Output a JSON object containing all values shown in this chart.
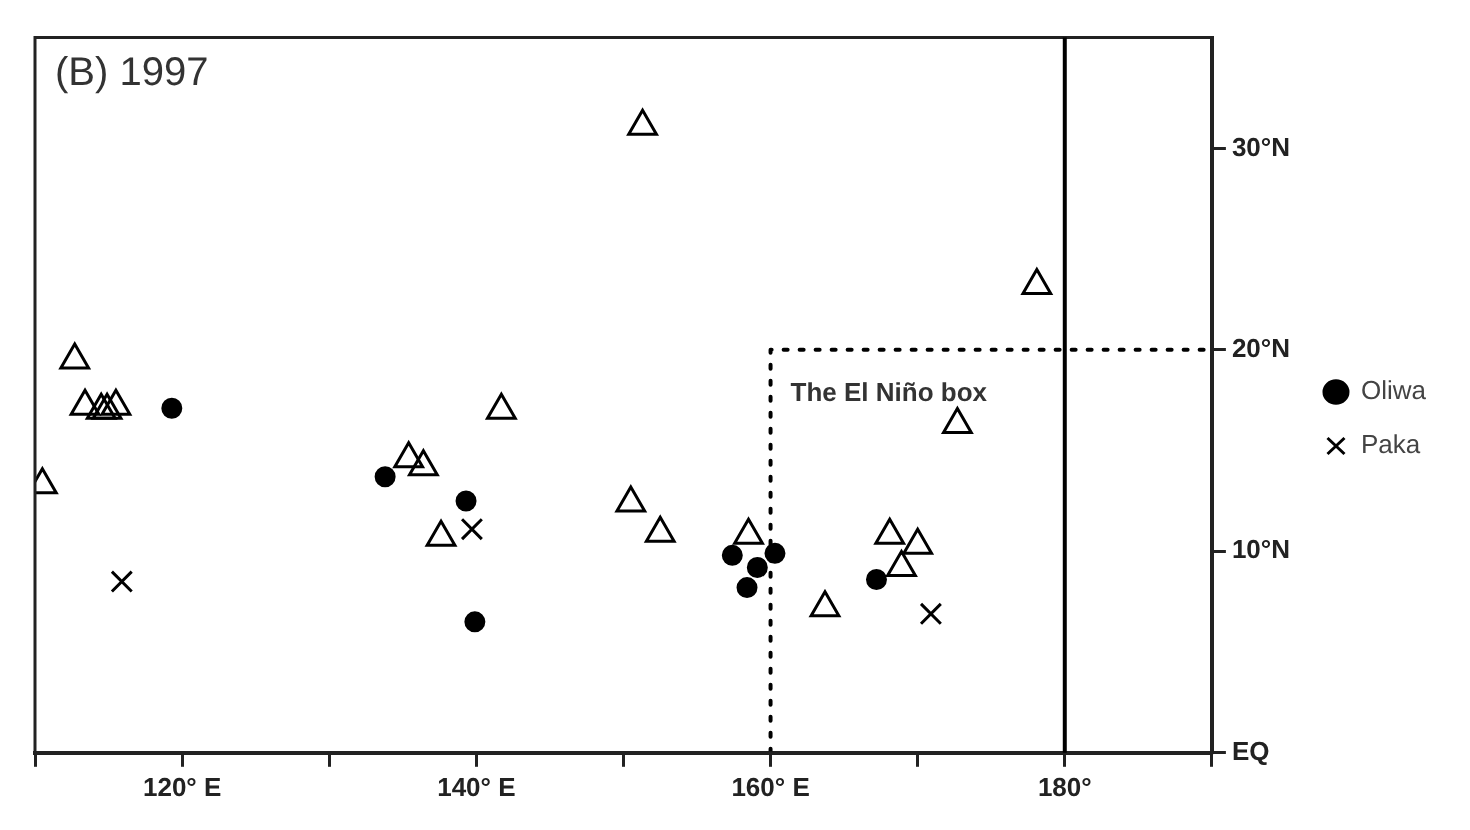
{
  "chart_data": {
    "type": "scatter",
    "title": "(B) 1997",
    "xlim": [
      110,
      190
    ],
    "ylim": [
      0,
      35.5
    ],
    "xticks": [
      {
        "value": 110,
        "label": null
      },
      {
        "value": 120,
        "label": "120° E"
      },
      {
        "value": 130,
        "label": null
      },
      {
        "value": 140,
        "label": "140° E"
      },
      {
        "value": 150,
        "label": null
      },
      {
        "value": 160,
        "label": "160° E"
      },
      {
        "value": 170,
        "label": null
      },
      {
        "value": 180,
        "label": "180°"
      },
      {
        "value": 190,
        "label": null
      }
    ],
    "yticks": [
      {
        "value": 0,
        "label": "EQ"
      },
      {
        "value": 10,
        "label": "10°N"
      },
      {
        "value": 20,
        "label": "20°N"
      },
      {
        "value": 30,
        "label": "30°N"
      }
    ],
    "grid": false,
    "legend": "right",
    "ref_lines": [
      {
        "axis": "x",
        "value": 180,
        "color": "#000000",
        "line_style": "solid"
      }
    ],
    "annotations": [
      "The El Niño box"
    ],
    "series": [
      {
        "marker": "triangle",
        "color": "#000000",
        "x": [
          151.3,
          112.7,
          113.4,
          114.5,
          114.9,
          115.5,
          110.5,
          135.4,
          136.4,
          141.7,
          137.6,
          150.5,
          152.5,
          178.1,
          172.7,
          158.5,
          168.1,
          170.0,
          168.9,
          163.7
        ],
        "values": [
          31.1,
          19.5,
          17.2,
          17.0,
          17.0,
          17.2,
          13.3,
          14.6,
          14.2,
          17.0,
          10.7,
          12.4,
          10.9,
          23.2,
          16.3,
          10.8,
          10.8,
          10.3,
          9.2,
          7.2
        ]
      },
      {
        "name": "Oliwa",
        "marker": "circle",
        "color": "#000000",
        "x": [
          119.3,
          133.8,
          139.3,
          139.9,
          157.4,
          159.1,
          160.3,
          158.4,
          167.2
        ],
        "values": [
          17.1,
          13.7,
          12.5,
          6.5,
          9.8,
          9.2,
          9.9,
          8.2,
          8.6
        ]
      },
      {
        "name": "Paka",
        "marker": "cross",
        "color": "#000000",
        "x": [
          115.9,
          139.7,
          170.9
        ],
        "values": [
          8.5,
          11.1,
          6.9
        ]
      },
      {
        "type": "line",
        "marker": "none",
        "line_style": "dotted",
        "color": "#000000",
        "x": [
          160,
          160,
          190
        ],
        "values": [
          0,
          20,
          20
        ]
      }
    ]
  }
}
